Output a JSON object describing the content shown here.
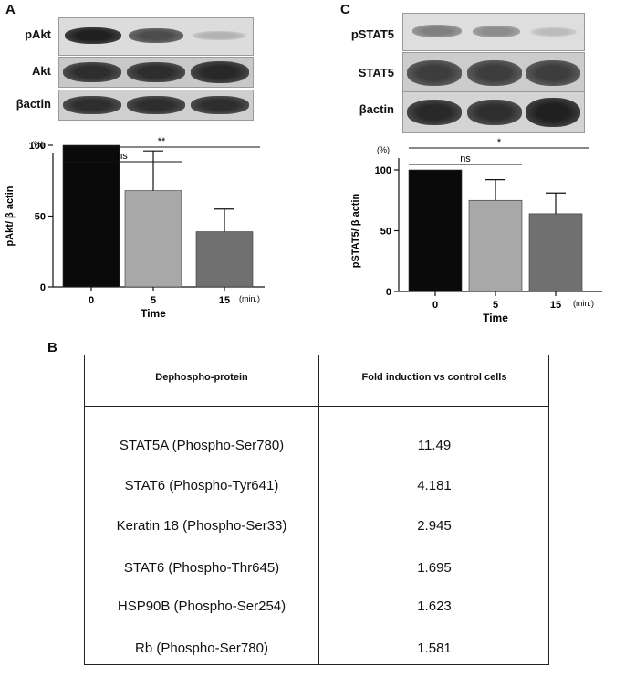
{
  "panels": {
    "a": {
      "letter": "A",
      "blots": [
        {
          "label": "pAkt",
          "band_intensity": [
            0.95,
            0.8,
            0.35
          ]
        },
        {
          "label": "Akt",
          "band_intensity": [
            0.9,
            0.9,
            0.92
          ]
        },
        {
          "label": "βactin",
          "band_intensity": [
            0.9,
            0.9,
            0.9
          ]
        }
      ]
    },
    "c": {
      "letter": "C",
      "blots": [
        {
          "label": "pSTAT5",
          "band_intensity": [
            0.6,
            0.55,
            0.3
          ]
        },
        {
          "label": "STAT5",
          "band_intensity": [
            0.85,
            0.85,
            0.85
          ]
        },
        {
          "label": "βactin",
          "band_intensity": [
            0.92,
            0.9,
            0.95
          ]
        }
      ]
    },
    "b": {
      "letter": "B"
    }
  },
  "chart_data": [
    {
      "type": "bar",
      "panel": "A",
      "categories": [
        "0",
        "5",
        "15"
      ],
      "values": [
        100,
        68,
        39
      ],
      "error": [
        0,
        28,
        16
      ],
      "bar_colors": [
        "#0a0a0a",
        "#a8a8a8",
        "#707070"
      ],
      "ylabel": "pAkt/ β actin",
      "xlabel": "Time",
      "unit_y": "(%)",
      "unit_x": "(min.)",
      "ylim": [
        0,
        100
      ],
      "yticks": [
        0,
        50,
        100
      ],
      "significance": [
        {
          "label": "ns",
          "from": 0,
          "to": 1
        },
        {
          "label": "**",
          "from": 0,
          "to": 2
        }
      ]
    },
    {
      "type": "bar",
      "panel": "C",
      "categories": [
        "0",
        "5",
        "15"
      ],
      "values": [
        100,
        75,
        64
      ],
      "error": [
        0,
        17,
        17
      ],
      "bar_colors": [
        "#0a0a0a",
        "#a8a8a8",
        "#707070"
      ],
      "ylabel": "pSTAT5/ β actin",
      "xlabel": "Time",
      "unit_y": "(%)",
      "unit_x": "(min.)",
      "ylim": [
        0,
        100
      ],
      "yticks": [
        0,
        50,
        100
      ],
      "significance": [
        {
          "label": "ns",
          "from": 0,
          "to": 1
        },
        {
          "label": "*",
          "from": 0,
          "to": 2
        }
      ]
    }
  ],
  "table": {
    "headers": [
      "Dephospho-protein",
      "Fold induction vs control cells"
    ],
    "rows": [
      {
        "protein": "STAT5A  (Phospho-Ser780)",
        "fold": "11.49"
      },
      {
        "protein": "STAT6 (Phospho-Tyr641)",
        "fold": "4.181"
      },
      {
        "protein": "Keratin 18 (Phospho-Ser33)",
        "fold": "2.945"
      },
      {
        "protein": "STAT6 (Phospho-Thr645)",
        "fold": "1.695"
      },
      {
        "protein": "HSP90B (Phospho-Ser254)",
        "fold": "1.623"
      },
      {
        "protein": "Rb (Phospho-Ser780)",
        "fold": "1.581"
      }
    ]
  }
}
